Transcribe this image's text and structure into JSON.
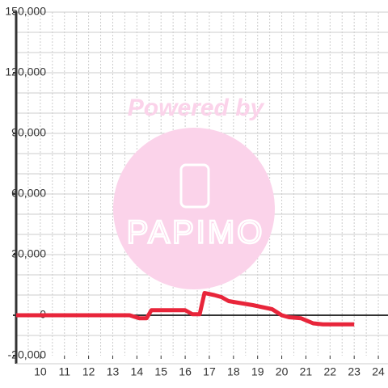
{
  "chart_data": {
    "type": "line",
    "watermark": {
      "top": "Powered by",
      "bottom": "PAPIMO"
    },
    "x": [
      9,
      13.7,
      14.1,
      14.4,
      14.6,
      15,
      16,
      16.3,
      16.6,
      16.8,
      17.2,
      17.5,
      17.8,
      18.3,
      18.8,
      19.2,
      19.6,
      20,
      20.3,
      20.8,
      21.3,
      21.7,
      23
    ],
    "series": [
      {
        "color": "#e8253a",
        "values": [
          0,
          0,
          -1500,
          -1500,
          2500,
          2500,
          2500,
          500,
          500,
          11000,
          10000,
          9000,
          7000,
          6000,
          5000,
          4000,
          3000,
          0,
          -1000,
          -1500,
          -4000,
          -4500,
          -4500
        ]
      }
    ],
    "xlim": [
      9,
      24.4
    ],
    "xticks": [
      10,
      11,
      12,
      13,
      14,
      15,
      16,
      17,
      18,
      19,
      20,
      21,
      22,
      23,
      24
    ],
    "xgrid": [
      9.5,
      10,
      10.5,
      11,
      11.5,
      12,
      12.5,
      13,
      13.5,
      14,
      14.5,
      15,
      15.5,
      16,
      16.5,
      17,
      17.5,
      18,
      18.5,
      19,
      19.5,
      20,
      20.5,
      21,
      21.5,
      22,
      22.5,
      23,
      23.5,
      24
    ],
    "ylim": [
      -20000,
      150000
    ],
    "yticks": [
      {
        "value": -20000,
        "label": "-20,000"
      },
      0,
      {
        "value": 30000,
        "label": "30,000"
      },
      {
        "value": 60000,
        "label": "60,000"
      },
      {
        "value": 90000,
        "label": "90,000"
      },
      {
        "value": 120000,
        "label": "120,000"
      },
      {
        "value": 150000,
        "label": "150,000"
      }
    ],
    "ygrid": [
      -10000,
      10000,
      20000,
      30000,
      40000,
      50000,
      60000,
      70000,
      80000,
      90000,
      100000,
      110000,
      120000,
      130000,
      140000,
      150000
    ]
  }
}
